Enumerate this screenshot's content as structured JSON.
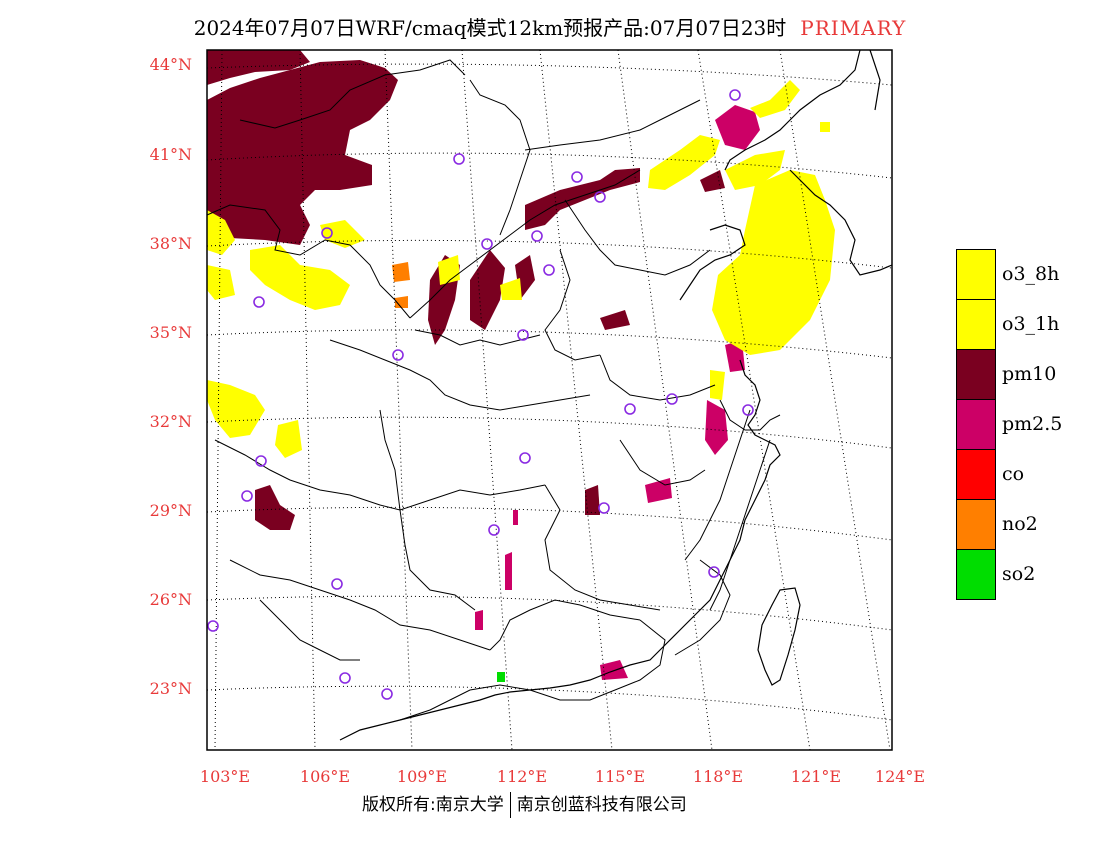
{
  "title": {
    "main": "2024年07月07日WRF/cmaq模式12km预报产品:07月07日23时",
    "tag": "PRIMARY"
  },
  "colors": {
    "label_red": "#e83a3a",
    "o3_8h": "#ffff00",
    "o3_1h": "#ffff00",
    "pm10": "#7a0020",
    "pm25": "#cc0066",
    "co": "#ff0000",
    "no2": "#ff7f00",
    "so2": "#00dd00",
    "marker": "#8a2be2"
  },
  "axes": {
    "lat_labels": [
      "44°N",
      "41°N",
      "38°N",
      "35°N",
      "32°N",
      "29°N",
      "26°N",
      "23°N"
    ],
    "lon_labels": [
      "103°E",
      "106°E",
      "109°E",
      "112°E",
      "115°E",
      "118°E",
      "121°E",
      "124°E"
    ]
  },
  "legend": [
    {
      "label": "o3_8h",
      "color": "#ffff00"
    },
    {
      "label": "o3_1h",
      "color": "#ffff00"
    },
    {
      "label": "pm10",
      "color": "#7a0020"
    },
    {
      "label": "pm2.5",
      "color": "#cc0066"
    },
    {
      "label": "co",
      "color": "#ff0000"
    },
    {
      "label": "no2",
      "color": "#ff7f00"
    },
    {
      "label": "so2",
      "color": "#00dd00"
    }
  ],
  "footer": {
    "left": "版权所有:南京大学",
    "right": "南京创蓝科技有限公司"
  }
}
